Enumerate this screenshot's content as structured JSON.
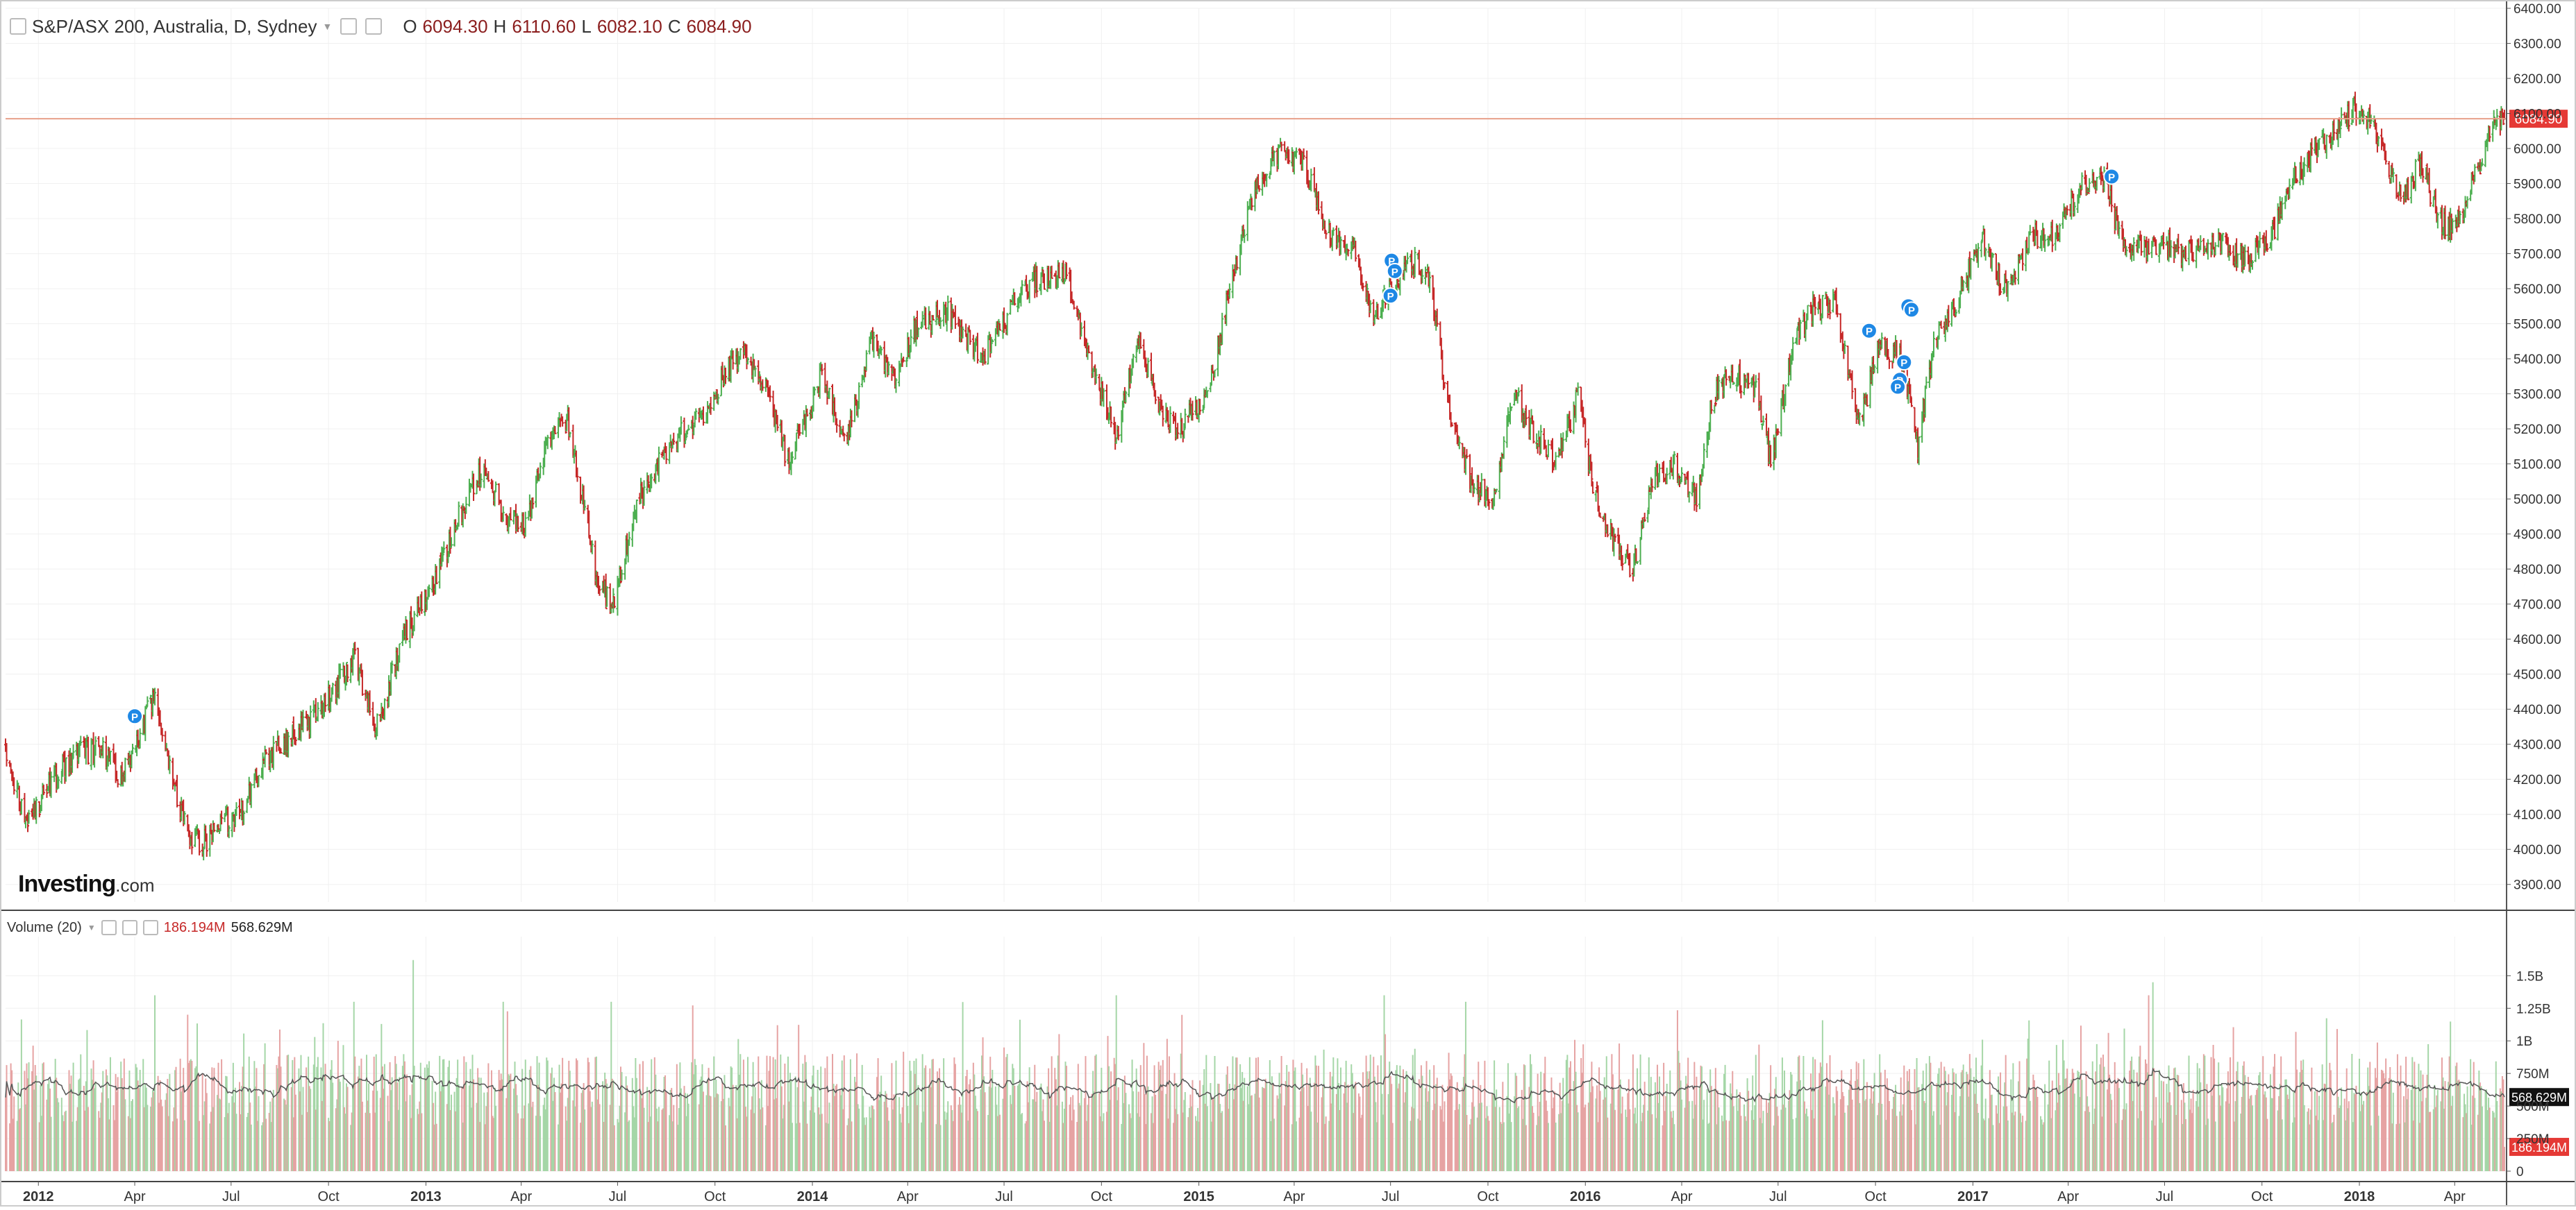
{
  "header": {
    "symbol": "S&P/ASX 200, Australia, D, Sydney",
    "open_label": "O",
    "open": "6094.30",
    "high_label": "H",
    "high": "6110.60",
    "low_label": "L",
    "low": "6082.10",
    "close_label": "C",
    "close": "6084.90"
  },
  "volume_header": {
    "label": "Volume (20)",
    "volume": "186.194M",
    "ma": "568.629M"
  },
  "brand": {
    "name": "Investing",
    "domain": ".com"
  },
  "colors": {
    "up": "#4caf50",
    "down": "#c62828",
    "vol_up": "#a5d6a7",
    "vol_down": "#e6a3a3",
    "last_price_line": "#e8a08a",
    "last_price_tag": "#e53935",
    "ma_line": "#555555",
    "grid": "#f0f0f0",
    "marker": "#1e88e5"
  },
  "chart_data": [
    {
      "type": "line",
      "style": "ohlc-daily",
      "title": "S&P/ASX 200, Australia, D, Sydney",
      "ylim": [
        3850,
        6400
      ],
      "yticks": [
        3900,
        4000,
        4100,
        4200,
        4300,
        4400,
        4500,
        4600,
        4700,
        4800,
        4900,
        5000,
        5100,
        5200,
        5300,
        5400,
        5500,
        5600,
        5700,
        5800,
        5900,
        6000,
        6100,
        6200,
        6300,
        6400
      ],
      "ytick_labels": [
        "3900.00",
        "4000.00",
        "4100.00",
        "4200.00",
        "4300.00",
        "4400.00",
        "4500.00",
        "4600.00",
        "4700.00",
        "4800.00",
        "4900.00",
        "5000.00",
        "5100.00",
        "5200.00",
        "5300.00",
        "5400.00",
        "5500.00",
        "5600.00",
        "5700.00",
        "5800.00",
        "5900.00",
        "6000.00",
        "6100.00",
        "6200.00",
        "6300.00",
        "6400.00"
      ],
      "x_tick_labels": [
        "2012",
        "Apr",
        "Jul",
        "Oct",
        "2013",
        "Apr",
        "Jul",
        "Oct",
        "2014",
        "Apr",
        "Jul",
        "Oct",
        "2015",
        "Apr",
        "Jul",
        "Oct",
        "2016",
        "Apr",
        "Jul",
        "Oct",
        "2017",
        "Apr",
        "Jul",
        "Oct",
        "2018",
        "Apr"
      ],
      "x_tick_dates": [
        "2012-01-01",
        "2012-04-01",
        "2012-07-01",
        "2012-10-01",
        "2013-01-01",
        "2013-04-01",
        "2013-07-01",
        "2013-10-01",
        "2014-01-01",
        "2014-04-01",
        "2014-07-01",
        "2014-10-01",
        "2015-01-01",
        "2015-04-01",
        "2015-07-01",
        "2015-10-01",
        "2016-01-01",
        "2016-04-01",
        "2016-07-01",
        "2016-10-01",
        "2017-01-01",
        "2017-04-01",
        "2017-07-01",
        "2017-10-01",
        "2018-01-01",
        "2018-04-01"
      ],
      "x_range": [
        "2011-12-01",
        "2018-05-20"
      ],
      "last_price": 6084.9,
      "last_price_label": "6084.90",
      "series": [
        {
          "values": [
            [
              "2011-12-01",
              4300
            ],
            [
              "2011-12-20",
              4060
            ],
            [
              "2012-01-10",
              4180
            ],
            [
              "2012-02-05",
              4270
            ],
            [
              "2012-03-01",
              4280
            ],
            [
              "2012-03-20",
              4200
            ],
            [
              "2012-04-05",
              4330
            ],
            [
              "2012-04-20",
              4440
            ],
            [
              "2012-05-05",
              4230
            ],
            [
              "2012-05-20",
              4050
            ],
            [
              "2012-06-05",
              4020
            ],
            [
              "2012-06-25",
              4080
            ],
            [
              "2012-07-10",
              4100
            ],
            [
              "2012-08-01",
              4260
            ],
            [
              "2012-08-20",
              4300
            ],
            [
              "2012-09-15",
              4370
            ],
            [
              "2012-10-10",
              4470
            ],
            [
              "2012-10-25",
              4550
            ],
            [
              "2012-11-15",
              4340
            ],
            [
              "2012-12-10",
              4600
            ],
            [
              "2013-01-10",
              4770
            ],
            [
              "2013-02-01",
              4950
            ],
            [
              "2013-02-25",
              5100
            ],
            [
              "2013-03-15",
              4950
            ],
            [
              "2013-04-05",
              4920
            ],
            [
              "2013-04-25",
              5150
            ],
            [
              "2013-05-15",
              5230
            ],
            [
              "2013-06-10",
              4800
            ],
            [
              "2013-06-25",
              4680
            ],
            [
              "2013-07-20",
              5000
            ],
            [
              "2013-08-20",
              5150
            ],
            [
              "2013-09-20",
              5250
            ],
            [
              "2013-10-25",
              5420
            ],
            [
              "2013-11-20",
              5300
            ],
            [
              "2013-12-10",
              5100
            ],
            [
              "2014-01-10",
              5350
            ],
            [
              "2014-02-01",
              5150
            ],
            [
              "2014-02-25",
              5450
            ],
            [
              "2014-03-20",
              5340
            ],
            [
              "2014-04-10",
              5500
            ],
            [
              "2014-05-10",
              5530
            ],
            [
              "2014-06-10",
              5400
            ],
            [
              "2014-07-10",
              5550
            ],
            [
              "2014-07-30",
              5620
            ],
            [
              "2014-08-30",
              5640
            ],
            [
              "2014-09-20",
              5400
            ],
            [
              "2014-10-15",
              5180
            ],
            [
              "2014-11-05",
              5450
            ],
            [
              "2014-11-25",
              5250
            ],
            [
              "2014-12-15",
              5200
            ],
            [
              "2015-01-10",
              5300
            ],
            [
              "2015-02-05",
              5680
            ],
            [
              "2015-02-25",
              5900
            ],
            [
              "2015-03-15",
              5980
            ],
            [
              "2015-04-10",
              5960
            ],
            [
              "2015-05-05",
              5750
            ],
            [
              "2015-05-25",
              5720
            ],
            [
              "2015-06-15",
              5520
            ],
            [
              "2015-07-05",
              5620
            ],
            [
              "2015-07-20",
              5680
            ],
            [
              "2015-08-05",
              5660
            ],
            [
              "2015-08-25",
              5250
            ],
            [
              "2015-09-15",
              5050
            ],
            [
              "2015-10-05",
              5000
            ],
            [
              "2015-10-25",
              5300
            ],
            [
              "2015-11-15",
              5180
            ],
            [
              "2015-12-05",
              5100
            ],
            [
              "2015-12-25",
              5300
            ],
            [
              "2016-01-10",
              5000
            ],
            [
              "2016-01-25",
              4900
            ],
            [
              "2016-02-15",
              4800
            ],
            [
              "2016-03-05",
              5050
            ],
            [
              "2016-03-25",
              5100
            ],
            [
              "2016-04-15",
              5000
            ],
            [
              "2016-05-01",
              5300
            ],
            [
              "2016-05-20",
              5360
            ],
            [
              "2016-06-10",
              5300
            ],
            [
              "2016-06-25",
              5100
            ],
            [
              "2016-07-15",
              5450
            ],
            [
              "2016-08-05",
              5560
            ],
            [
              "2016-08-25",
              5550
            ],
            [
              "2016-09-15",
              5200
            ],
            [
              "2016-10-05",
              5450
            ],
            [
              "2016-10-25",
              5400
            ],
            [
              "2016-11-10",
              5150
            ],
            [
              "2016-11-25",
              5450
            ],
            [
              "2016-12-15",
              5550
            ],
            [
              "2017-01-10",
              5750
            ],
            [
              "2017-01-30",
              5600
            ],
            [
              "2017-02-25",
              5750
            ],
            [
              "2017-03-20",
              5760
            ],
            [
              "2017-04-15",
              5900
            ],
            [
              "2017-05-05",
              5920
            ],
            [
              "2017-05-25",
              5700
            ],
            [
              "2017-06-20",
              5730
            ],
            [
              "2017-07-20",
              5700
            ],
            [
              "2017-08-20",
              5730
            ],
            [
              "2017-09-20",
              5680
            ],
            [
              "2017-10-10",
              5750
            ],
            [
              "2017-10-30",
              5900
            ],
            [
              "2017-11-20",
              6000
            ],
            [
              "2017-12-10",
              6050
            ],
            [
              "2017-12-30",
              6120
            ],
            [
              "2018-01-15",
              6070
            ],
            [
              "2018-02-10",
              5850
            ],
            [
              "2018-02-28",
              5960
            ],
            [
              "2018-03-20",
              5780
            ],
            [
              "2018-04-05",
              5800
            ],
            [
              "2018-04-25",
              5950
            ],
            [
              "2018-05-10",
              6090
            ],
            [
              "2018-05-20",
              6085
            ]
          ]
        }
      ],
      "markers": {
        "label": "P",
        "points": [
          [
            "2012-04-01",
            4380
          ],
          [
            "2015-07-02",
            5680
          ],
          [
            "2015-07-05",
            5650
          ],
          [
            "2015-07-01",
            5580
          ],
          [
            "2016-09-25",
            5480
          ],
          [
            "2016-11-01",
            5550
          ],
          [
            "2016-11-04",
            5540
          ],
          [
            "2016-10-28",
            5390
          ],
          [
            "2016-10-24",
            5340
          ],
          [
            "2016-10-22",
            5320
          ],
          [
            "2017-05-12",
            5920
          ]
        ]
      }
    },
    {
      "type": "bar",
      "title": "Volume (20)",
      "ylim": [
        0,
        1800
      ],
      "yticks": [
        0,
        250,
        500,
        750,
        1000,
        1250,
        1500
      ],
      "ytick_labels": [
        "0",
        "250M",
        "500M",
        "750M",
        "1B",
        "1.25B",
        "1.5B"
      ],
      "current_volume": 186.194,
      "current_volume_label": "186.194M",
      "ma_value": 568.629,
      "ma_label": "568.629M",
      "units": "millions of shares",
      "typical_range": [
        350,
        900
      ],
      "spikes": [
        [
          "2012-04-20",
          1350
        ],
        [
          "2012-10-25",
          1300
        ],
        [
          "2013-03-15",
          1300
        ],
        [
          "2013-06-25",
          1300
        ],
        [
          "2014-10-15",
          1350
        ],
        [
          "2015-03-15",
          1400
        ],
        [
          "2015-06-25",
          1350
        ],
        [
          "2015-09-10",
          1300
        ],
        [
          "2016-01-10",
          1500
        ],
        [
          "2016-06-25",
          1400
        ],
        [
          "2017-06-20",
          1450
        ],
        [
          "2018-02-10",
          1400
        ],
        [
          "2012-12-20",
          1620
        ]
      ]
    }
  ]
}
